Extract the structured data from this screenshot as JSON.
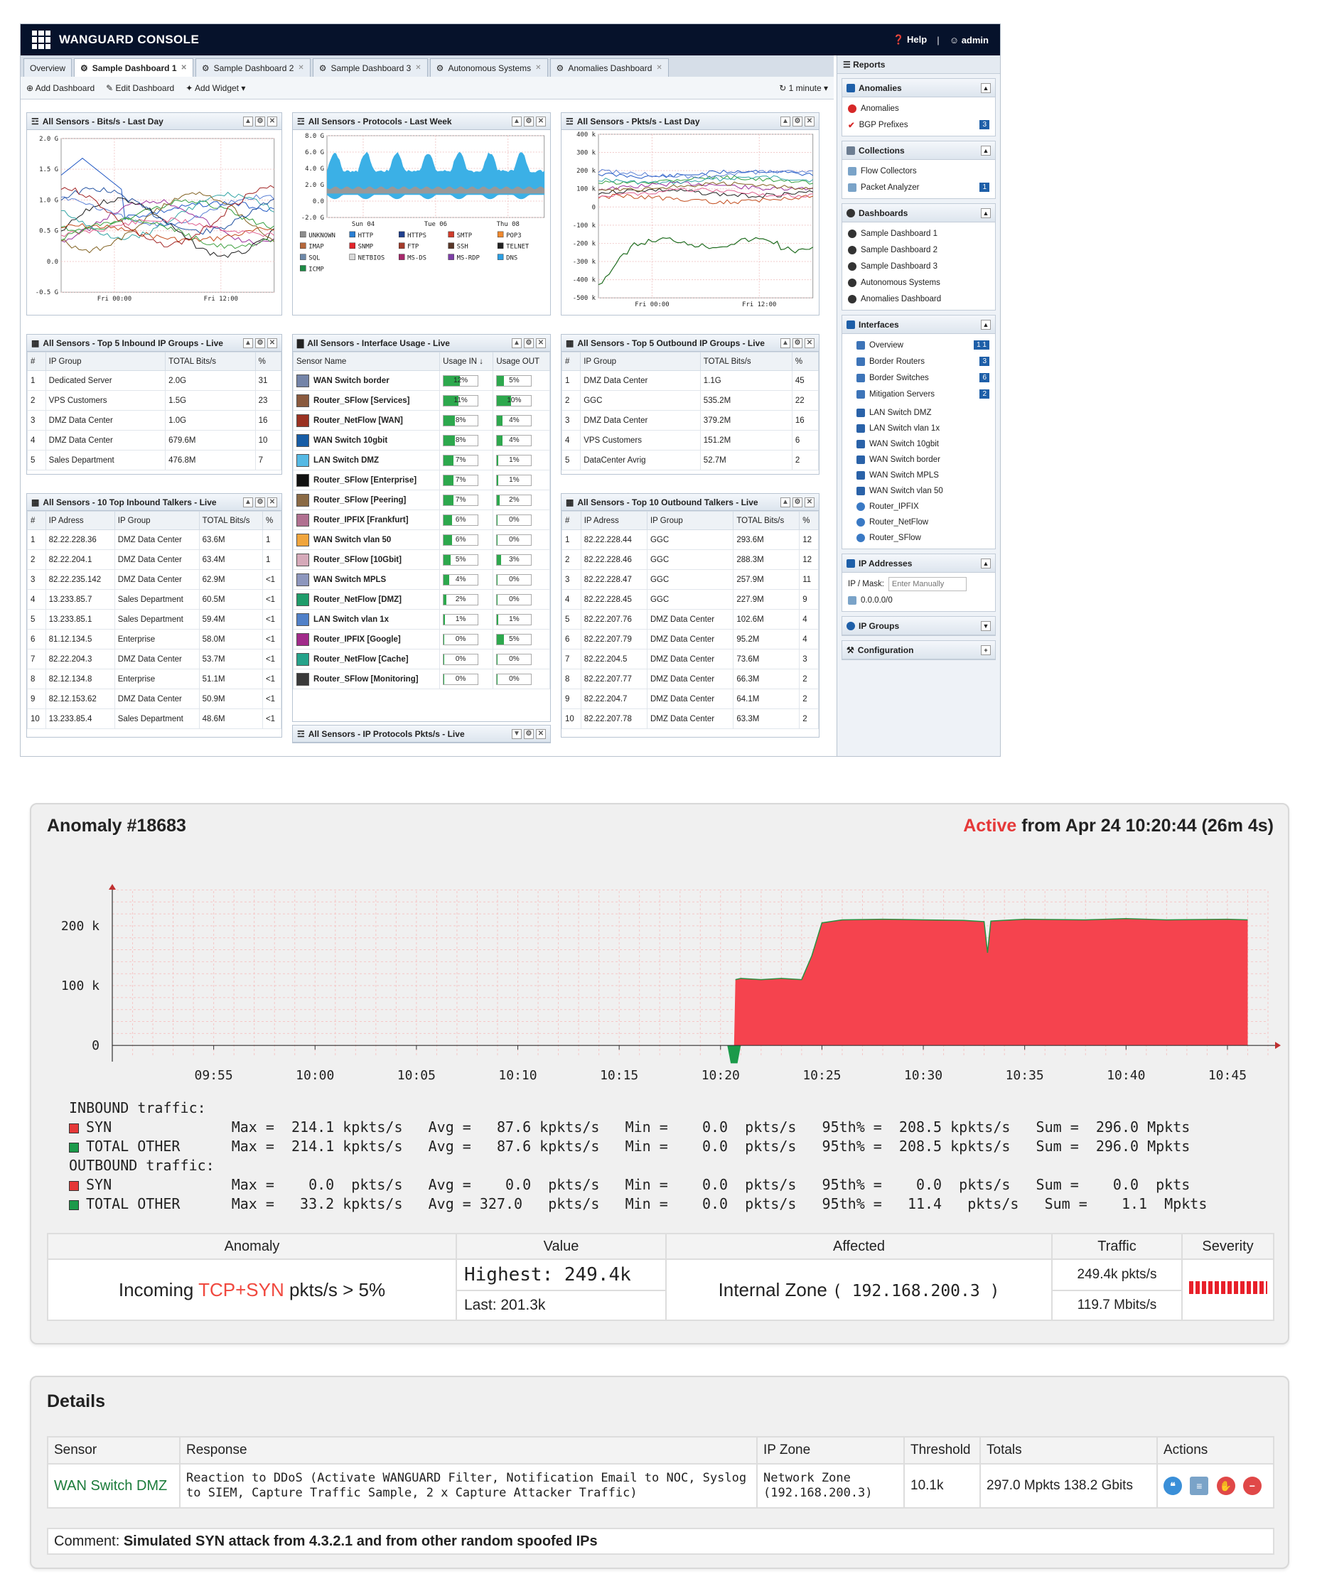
{
  "console": {
    "title": "WANGUARD CONSOLE",
    "help": "Help",
    "user": "admin",
    "tabs": [
      "Overview",
      "Sample Dashboard 1",
      "Sample Dashboard 2",
      "Sample Dashboard 3",
      "Autonomous Systems",
      "Anomalies Dashboard"
    ],
    "toolbar": {
      "add_dashboard": "Add Dashboard",
      "edit_dashboard": "Edit Dashboard",
      "add_widget": "Add Widget",
      "refresh": "1 minute"
    },
    "widgets": {
      "bits": {
        "title": "All Sensors - Bits/s - Last Day",
        "yticks": [
          "2.0 G",
          "1.5 G",
          "1.0 G",
          "0.5 G",
          "0.0",
          "-0.5 G"
        ],
        "xticks": [
          "Fri 00:00",
          "Fri 12:00"
        ]
      },
      "protocols": {
        "title": "All Sensors - Protocols - Last Week",
        "yticks": [
          "8.0 G",
          "6.0 G",
          "4.0 G",
          "2.0 G",
          "0.0",
          "-2.0 G"
        ],
        "xticks": [
          "Sun 04",
          "Tue 06",
          "Thu 08"
        ],
        "legend": [
          "UNKNOWN",
          "HTTP",
          "HTTPS",
          "SMTP",
          "POP3",
          "IMAP",
          "SNMP",
          "FTP",
          "SSH",
          "TELNET",
          "SQL",
          "NETBIOS",
          "MS-DS",
          "MS-RDP",
          "DNS",
          "ICMP"
        ],
        "legend_colors": [
          "#8d8d8d",
          "#2a7fd3",
          "#1f3f8e",
          "#d03c2b",
          "#f08a2f",
          "#b5673b",
          "#e2242a",
          "#a33b2c",
          "#593728",
          "#222",
          "#6c88a8",
          "#d9d9d9",
          "#a6286b",
          "#7d3fa6",
          "#2c9fe3",
          "#1d8b45"
        ]
      },
      "pkts": {
        "title": "All Sensors - Pkts/s - Last Day",
        "yticks": [
          "400 k",
          "300 k",
          "200 k",
          "100 k",
          "0",
          "-100 k",
          "-200 k",
          "-300 k",
          "-400 k",
          "-500 k"
        ],
        "xticks": [
          "Fri 00:00",
          "Fri 12:00"
        ]
      },
      "top_in_groups": {
        "title": "All Sensors - Top 5 Inbound IP Groups - Live",
        "headers": [
          "#",
          "IP Group",
          "TOTAL Bits/s",
          "%"
        ],
        "rows": [
          [
            "1",
            "Dedicated Server",
            "2.0G",
            "31"
          ],
          [
            "2",
            "VPS Customers",
            "1.5G",
            "23"
          ],
          [
            "3",
            "DMZ Data Center",
            "1.0G",
            "16"
          ],
          [
            "4",
            "DMZ Data Center",
            "679.6M",
            "10"
          ],
          [
            "5",
            "Sales Department",
            "476.8M",
            "7"
          ]
        ]
      },
      "interface_usage": {
        "title": "All Sensors - Interface Usage - Live",
        "headers": [
          "Sensor Name",
          "Usage IN ↓",
          "Usage OUT"
        ],
        "rows": [
          {
            "name": "WAN Switch border",
            "color": "#7484a8",
            "in": "12%",
            "out": "5%",
            "in_v": 12,
            "out_v": 5
          },
          {
            "name": "Router_SFlow [Services]",
            "color": "#8a5a3e",
            "in": "11%",
            "out": "10%",
            "in_v": 11,
            "out_v": 10
          },
          {
            "name": "Router_NetFlow [WAN]",
            "color": "#9a3222",
            "in": "8%",
            "out": "4%",
            "in_v": 8,
            "out_v": 4
          },
          {
            "name": "WAN Switch 10gbit",
            "color": "#175da6",
            "in": "8%",
            "out": "4%",
            "in_v": 8,
            "out_v": 4
          },
          {
            "name": "LAN Switch DMZ",
            "color": "#55b9e4",
            "in": "7%",
            "out": "1%",
            "in_v": 7,
            "out_v": 1
          },
          {
            "name": "Router_SFlow [Enterprise]",
            "color": "#111111",
            "in": "7%",
            "out": "1%",
            "in_v": 7,
            "out_v": 1
          },
          {
            "name": "Router_SFlow [Peering]",
            "color": "#8a6a45",
            "in": "7%",
            "out": "2%",
            "in_v": 7,
            "out_v": 2
          },
          {
            "name": "Router_IPFIX [Frankfurt]",
            "color": "#b07090",
            "in": "6%",
            "out": "0%",
            "in_v": 6,
            "out_v": 0
          },
          {
            "name": "WAN Switch vlan 50",
            "color": "#f0a53d",
            "in": "6%",
            "out": "0%",
            "in_v": 6,
            "out_v": 0
          },
          {
            "name": "Router_SFlow [10Gbit]",
            "color": "#d5a9b9",
            "in": "5%",
            "out": "3%",
            "in_v": 5,
            "out_v": 3
          },
          {
            "name": "WAN Switch MPLS",
            "color": "#8c96bd",
            "in": "4%",
            "out": "0%",
            "in_v": 4,
            "out_v": 0
          },
          {
            "name": "Router_NetFlow [DMZ]",
            "color": "#1e9c6a",
            "in": "2%",
            "out": "0%",
            "in_v": 2,
            "out_v": 0
          },
          {
            "name": "LAN Switch vlan 1x",
            "color": "#5080c8",
            "in": "1%",
            "out": "1%",
            "in_v": 1,
            "out_v": 1
          },
          {
            "name": "Router_IPFIX [Google]",
            "color": "#a12a8a",
            "in": "0%",
            "out": "5%",
            "in_v": 0,
            "out_v": 5
          },
          {
            "name": "Router_NetFlow [Cache]",
            "color": "#25a38a",
            "in": "0%",
            "out": "0%",
            "in_v": 0,
            "out_v": 0
          },
          {
            "name": "Router_SFlow [Monitoring]",
            "color": "#3a3a3a",
            "in": "0%",
            "out": "0%",
            "in_v": 0,
            "out_v": 0
          }
        ]
      },
      "top_out_groups": {
        "title": "All Sensors - Top 5 Outbound IP Groups - Live",
        "headers": [
          "#",
          "IP Group",
          "TOTAL Bits/s",
          "%"
        ],
        "rows": [
          [
            "1",
            "DMZ Data Center",
            "1.1G",
            "45"
          ],
          [
            "2",
            "GGC",
            "535.2M",
            "22"
          ],
          [
            "3",
            "DMZ Data Center",
            "379.2M",
            "16"
          ],
          [
            "4",
            "VPS Customers",
            "151.2M",
            "6"
          ],
          [
            "5",
            "DataCenter Avrig",
            "52.7M",
            "2"
          ]
        ]
      },
      "top_in_talkers": {
        "title": "All Sensors - 10 Top Inbound Talkers - Live",
        "headers": [
          "#",
          "IP Adress",
          "IP Group",
          "TOTAL Bits/s",
          "%"
        ],
        "rows": [
          [
            "1",
            "82.22.228.36",
            "DMZ Data Center",
            "63.6M",
            "1"
          ],
          [
            "2",
            "82.22.204.1",
            "DMZ Data Center",
            "63.4M",
            "1"
          ],
          [
            "3",
            "82.22.235.142",
            "DMZ Data Center",
            "62.9M",
            "<1"
          ],
          [
            "4",
            "13.233.85.7",
            "Sales Department",
            "60.5M",
            "<1"
          ],
          [
            "5",
            "13.233.85.1",
            "Sales Department",
            "59.4M",
            "<1"
          ],
          [
            "6",
            "81.12.134.5",
            "Enterprise",
            "58.0M",
            "<1"
          ],
          [
            "7",
            "82.22.204.3",
            "DMZ Data Center",
            "53.7M",
            "<1"
          ],
          [
            "8",
            "82.12.134.8",
            "Enterprise",
            "51.1M",
            "<1"
          ],
          [
            "9",
            "82.12.153.62",
            "DMZ Data Center",
            "50.9M",
            "<1"
          ],
          [
            "10",
            "13.233.85.4",
            "Sales Department",
            "48.6M",
            "<1"
          ]
        ]
      },
      "top_out_talkers": {
        "title": "All Sensors - Top 10 Outbound Talkers - Live",
        "headers": [
          "#",
          "IP Adress",
          "IP Group",
          "TOTAL Bits/s",
          "%"
        ],
        "rows": [
          [
            "1",
            "82.22.228.44",
            "GGC",
            "293.6M",
            "12"
          ],
          [
            "2",
            "82.22.228.46",
            "GGC",
            "288.3M",
            "12"
          ],
          [
            "3",
            "82.22.228.47",
            "GGC",
            "257.9M",
            "11"
          ],
          [
            "4",
            "82.22.228.45",
            "GGC",
            "227.9M",
            "9"
          ],
          [
            "5",
            "82.22.207.76",
            "DMZ Data Center",
            "102.6M",
            "4"
          ],
          [
            "6",
            "82.22.207.79",
            "DMZ Data Center",
            "95.2M",
            "4"
          ],
          [
            "7",
            "82.22.204.5",
            "DMZ Data Center",
            "73.6M",
            "3"
          ],
          [
            "8",
            "82.22.207.77",
            "DMZ Data Center",
            "66.3M",
            "2"
          ],
          [
            "9",
            "82.22.204.7",
            "DMZ Data Center",
            "64.1M",
            "2"
          ],
          [
            "10",
            "82.22.207.78",
            "DMZ Data Center",
            "63.3M",
            "2"
          ]
        ]
      },
      "ip_protocols": {
        "title": "All Sensors - IP Protocols Pkts/s - Live"
      }
    },
    "sidebar": {
      "reports": "Reports",
      "anomalies": {
        "title": "Anomalies",
        "items": [
          "Anomalies",
          "BGP Prefixes"
        ],
        "bgp_badge": "3"
      },
      "collections": {
        "title": "Collections",
        "items": [
          "Flow Collectors",
          "Packet Analyzer"
        ],
        "pa_badge": "1"
      },
      "dashboards": {
        "title": "Dashboards",
        "items": [
          "Sample Dashboard 1",
          "Sample Dashboard 2",
          "Sample Dashboard 3",
          "Autonomous Systems",
          "Anomalies Dashboard"
        ]
      },
      "interfaces": {
        "title": "Interfaces",
        "groups": [
          {
            "label": "Overview",
            "badge": "1  1"
          },
          {
            "label": "Border Routers",
            "badge": "3"
          },
          {
            "label": "Border Switches",
            "badge": "6"
          },
          {
            "label": "Mitigation Servers",
            "badge": "2"
          }
        ],
        "items": [
          "LAN Switch DMZ",
          "LAN Switch vlan 1x",
          "WAN Switch 10gbit",
          "WAN Switch border",
          "WAN Switch MPLS",
          "WAN Switch vlan 50",
          "Router_IPFIX",
          "Router_NetFlow",
          "Router_SFlow"
        ]
      },
      "ip_addresses": {
        "title": "IP Addresses",
        "mask_label": "IP / Mask:",
        "placeholder": "Enter Manually",
        "item": "0.0.0.0/0"
      },
      "ip_groups": "IP Groups",
      "configuration": "Configuration"
    }
  },
  "anomaly": {
    "title": "Anomaly #18683",
    "status_word": "Active",
    "status_rest": " from Apr 24 10:20:44 (26m 4s)",
    "yticks": [
      "200 k",
      "100 k",
      "0"
    ],
    "xticks": [
      "09:55",
      "10:00",
      "10:05",
      "10:10",
      "10:15",
      "10:20",
      "10:25",
      "10:30",
      "10:35",
      "10:40",
      "10:45"
    ],
    "stats": {
      "inbound_title": "INBOUND traffic:",
      "outbound_title": "OUTBOUND traffic:",
      "in_syn": "SYN              Max =  214.1 kpkts/s   Avg =   87.6 kpkts/s   Min =    0.0  pkts/s   95th% =  208.5 kpkts/s   Sum =  296.0 Mpkts",
      "in_other": "TOTAL OTHER      Max =  214.1 kpkts/s   Avg =   87.6 kpkts/s   Min =    0.0  pkts/s   95th% =  208.5 kpkts/s   Sum =  296.0 Mpkts",
      "out_syn": "SYN              Max =    0.0  pkts/s   Avg =    0.0  pkts/s   Min =    0.0  pkts/s   95th% =    0.0  pkts/s   Sum =    0.0  pkts",
      "out_other": "TOTAL OTHER      Max =   33.2 kpkts/s   Avg = 327.0   pkts/s   Min =    0.0  pkts/s   95th% =   11.4   pkts/s   Sum =    1.1  Mpkts",
      "syn_color": "#e53838",
      "other_color": "#1b9a4a"
    },
    "table": {
      "headers": [
        "Anomaly",
        "Value",
        "Affected",
        "Traffic",
        "Severity"
      ],
      "anomaly_pre": "Incoming ",
      "anomaly_hl": "TCP+SYN",
      "anomaly_post": " pkts/s > 5%",
      "highest": "Highest: 249.4k",
      "last": "Last: 201.3k",
      "affected_pre": "Internal Zone ",
      "affected_ip": "( 192.168.200.3 )",
      "traffic_pkts": "249.4k pkts/s",
      "traffic_bits": "119.7 Mbits/s"
    },
    "chart_data": {
      "type": "area",
      "title": "",
      "xlabel": "",
      "ylabel": "",
      "ylim": [
        -20000,
        270000
      ],
      "x_range": [
        "09:50",
        "10:47"
      ],
      "series": [
        {
          "name": "SYN",
          "color": "#f5434e",
          "points": [
            [
              "10:20:40",
              0
            ],
            [
              "10:20:44",
              110000
            ],
            [
              "10:21",
              112000
            ],
            [
              "10:22",
              110000
            ],
            [
              "10:23",
              112000
            ],
            [
              "10:24",
              110000
            ],
            [
              "10:24:30",
              150000
            ],
            [
              "10:25",
              205000
            ],
            [
              "10:26",
              210000
            ],
            [
              "10:28",
              211000
            ],
            [
              "10:30",
              210000
            ],
            [
              "10:32",
              209000
            ],
            [
              "10:33",
              207000
            ],
            [
              "10:33:10",
              155000
            ],
            [
              "10:33:20",
              208000
            ],
            [
              "10:35",
              211000
            ],
            [
              "10:38",
              210000
            ],
            [
              "10:40",
              212000
            ],
            [
              "10:42",
              210000
            ],
            [
              "10:45",
              211000
            ],
            [
              "10:46",
              210000
            ]
          ]
        },
        {
          "name": "TOTAL OTHER",
          "color": "#1b9a4a",
          "points": [
            [
              "10:20:20",
              0
            ],
            [
              "10:20:30",
              -30000
            ],
            [
              "10:20:50",
              -30000
            ],
            [
              "10:21",
              0
            ]
          ]
        }
      ]
    }
  },
  "details": {
    "title": "Details",
    "headers": [
      "Sensor",
      "Response",
      "IP Zone",
      "Threshold",
      "Totals",
      "Actions"
    ],
    "sensor": "WAN Switch DMZ",
    "response_1": "Reaction to DDoS (Activate WANGUARD Filter, Notification Email to NOC, Syslog",
    "response_2": "to SIEM, Capture Traffic Sample, 2 x Capture Attacker Traffic)",
    "zone_1": "Network Zone",
    "zone_2": "(192.168.200.3)",
    "threshold": "10.1k",
    "totals": "297.0 Mpkts 138.2 Gbits",
    "comment_label": "Comment: ",
    "comment": "Simulated SYN attack from 4.3.2.1 and from other random spoofed IPs"
  }
}
